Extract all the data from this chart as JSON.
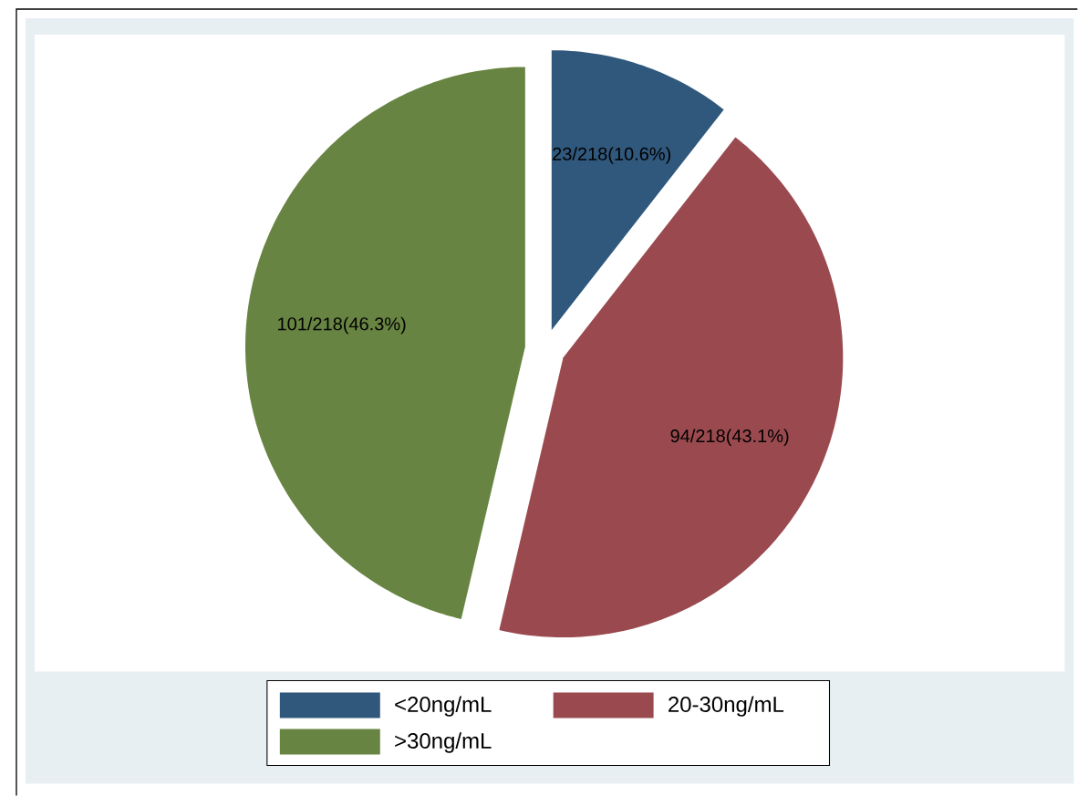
{
  "chart_data": {
    "type": "pie",
    "categories": [
      "<20ng/mL",
      "20-30ng/mL",
      ">30ng/mL"
    ],
    "values": [
      23,
      94,
      101
    ],
    "value_labels": [
      "23/218(10.6%)",
      "94/218(43.1%)",
      "101/218(46.3%)"
    ],
    "colors": [
      "#30587c",
      "#9a4a4f",
      "#688442"
    ],
    "legend": "bottom"
  }
}
